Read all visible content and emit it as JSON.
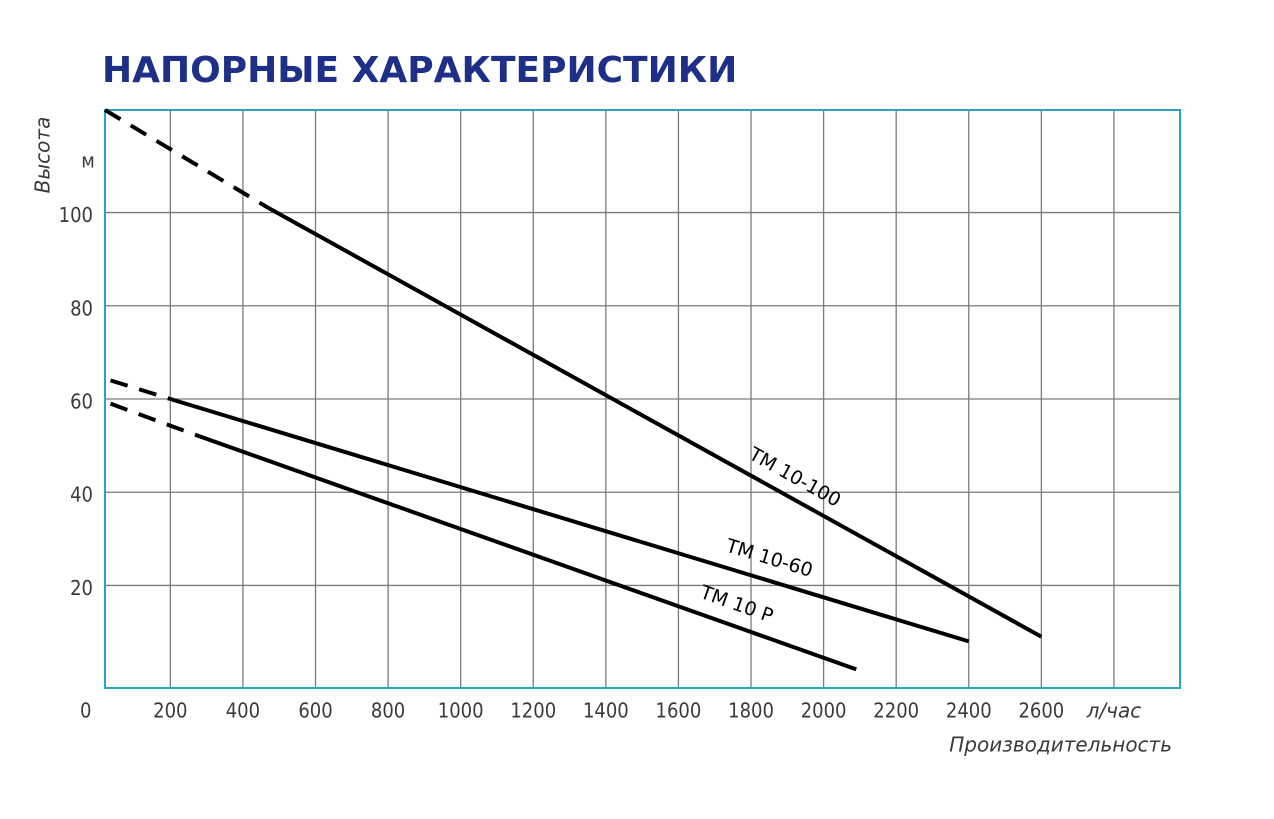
{
  "chart_data": {
    "type": "line",
    "title": "НАПОРНЫЕ ХАРАКТЕРИСТИКИ",
    "y_label": "Высота",
    "y_unit": "м",
    "x_label": "Производительность",
    "series": [
      {
        "name": "ТМ 10-100",
        "color": "#000000",
        "x": [
          20,
          470,
          2600
        ],
        "values": [
          122,
          101,
          9
        ],
        "line_styles": [
          "dashed",
          "solid"
        ]
      },
      {
        "name": "ТМ 10-60",
        "color": "#000000",
        "x": [
          35,
          200,
          2400
        ],
        "values": [
          64,
          60,
          8
        ],
        "line_styles": [
          "dashed",
          "solid"
        ]
      },
      {
        "name": "ТМ 10 Р",
        "color": "#000000",
        "x": [
          35,
          280,
          2090
        ],
        "values": [
          59,
          52,
          2
        ],
        "line_styles": [
          "dashed",
          "solid"
        ]
      }
    ],
    "xlim": [
      20,
      2982
    ],
    "ylim": [
      -2,
      122
    ],
    "xticks": [
      0,
      200,
      400,
      600,
      800,
      1000,
      1200,
      1400,
      1600,
      1800,
      2000,
      2200,
      2400,
      2600,
      {
        "value": 2800,
        "label": "л/час"
      }
    ],
    "yticks": [
      20,
      40,
      60,
      80,
      100
    ],
    "grid": true,
    "grid_color": "#7a7a7a",
    "frame_color": "#2aa3c4",
    "title_color": "#1d2f86"
  }
}
